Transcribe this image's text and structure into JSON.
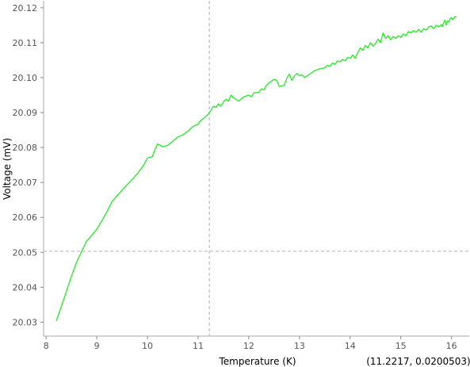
{
  "chart_data": {
    "type": "line",
    "title": "",
    "xlabel": "Temperature (K)",
    "ylabel": "Voltage (mV)",
    "xlim": [
      7.95,
      16.35
    ],
    "ylim": [
      20.026,
      20.122
    ],
    "x_ticks": [
      8,
      9,
      10,
      11,
      12,
      13,
      14,
      15,
      16
    ],
    "x_tick_labels": [
      "8",
      "9",
      "10",
      "11",
      "12",
      "13",
      "14",
      "15",
      "16"
    ],
    "y_ticks": [
      20.03,
      20.04,
      20.05,
      20.06,
      20.07,
      20.08,
      20.09,
      20.1,
      20.11,
      20.12
    ],
    "y_tick_labels": [
      "20.03",
      "20.04",
      "20.05",
      "20.06",
      "20.07",
      "20.08",
      "20.09",
      "20.10",
      "20.11",
      "20.12"
    ],
    "grid": false,
    "legend": "none",
    "series_color": "#22ee22",
    "crosshair": {
      "x": 11.2217,
      "y": 20.0503,
      "color": "#bbbbbb"
    },
    "cursor_readout": "(11.2217, 0.0200503)",
    "series": [
      {
        "points": [
          [
            8.2,
            20.0303
          ],
          [
            8.3,
            20.0345
          ],
          [
            8.4,
            20.0388
          ],
          [
            8.5,
            20.0432
          ],
          [
            8.6,
            20.0471
          ],
          [
            8.7,
            20.0502
          ],
          [
            8.8,
            20.0532
          ],
          [
            8.9,
            20.0548
          ],
          [
            9.0,
            20.0566
          ],
          [
            9.1,
            20.059
          ],
          [
            9.2,
            20.0616
          ],
          [
            9.3,
            20.0645
          ],
          [
            9.4,
            20.0662
          ],
          [
            9.5,
            20.0678
          ],
          [
            9.6,
            20.0694
          ],
          [
            9.7,
            20.0709
          ],
          [
            9.8,
            20.0725
          ],
          [
            9.9,
            20.0744
          ],
          [
            9.95,
            20.0756
          ],
          [
            10.0,
            20.077
          ],
          [
            10.05,
            20.0772
          ],
          [
            10.1,
            20.0774
          ],
          [
            10.15,
            20.0795
          ],
          [
            10.2,
            20.081
          ],
          [
            10.25,
            20.0806
          ],
          [
            10.3,
            20.0802
          ],
          [
            10.4,
            20.0806
          ],
          [
            10.5,
            20.0818
          ],
          [
            10.6,
            20.083
          ],
          [
            10.7,
            20.0836
          ],
          [
            10.8,
            20.0847
          ],
          [
            10.9,
            20.086
          ],
          [
            11.0,
            20.0867
          ],
          [
            11.05,
            20.0877
          ],
          [
            11.1,
            20.0882
          ],
          [
            11.2,
            20.0896
          ],
          [
            11.25,
            20.0906
          ],
          [
            11.3,
            20.0918
          ],
          [
            11.35,
            20.0915
          ],
          [
            11.4,
            20.0925
          ],
          [
            11.45,
            20.0918
          ],
          [
            11.5,
            20.093
          ],
          [
            11.55,
            20.0938
          ],
          [
            11.6,
            20.0933
          ],
          [
            11.65,
            20.095
          ],
          [
            11.7,
            20.0942
          ],
          [
            11.8,
            20.0933
          ],
          [
            11.9,
            20.0945
          ],
          [
            12.0,
            20.095
          ],
          [
            12.05,
            20.0945
          ],
          [
            12.1,
            20.0956
          ],
          [
            12.2,
            20.0958
          ],
          [
            12.25,
            20.0968
          ],
          [
            12.3,
            20.0965
          ],
          [
            12.35,
            20.0978
          ],
          [
            12.4,
            20.0985
          ],
          [
            12.45,
            20.099
          ],
          [
            12.5,
            20.0995
          ],
          [
            12.55,
            20.0992
          ],
          [
            12.6,
            20.0975
          ],
          [
            12.7,
            20.0978
          ],
          [
            12.75,
            20.0998
          ],
          [
            12.8,
            20.101
          ],
          [
            12.85,
            20.0992
          ],
          [
            12.9,
            20.1005
          ],
          [
            12.95,
            20.1012
          ],
          [
            13.0,
            20.1005
          ],
          [
            13.05,
            20.1008
          ],
          [
            13.1,
            20.1
          ],
          [
            13.2,
            20.101
          ],
          [
            13.3,
            20.102
          ],
          [
            13.4,
            20.1025
          ],
          [
            13.5,
            20.1028
          ],
          [
            13.55,
            20.1035
          ],
          [
            13.6,
            20.1032
          ],
          [
            13.65,
            20.1042
          ],
          [
            13.7,
            20.1038
          ],
          [
            13.75,
            20.1048
          ],
          [
            13.8,
            20.1045
          ],
          [
            13.85,
            20.1052
          ],
          [
            13.9,
            20.1048
          ],
          [
            13.95,
            20.1058
          ],
          [
            14.0,
            20.1055
          ],
          [
            14.05,
            20.1065
          ],
          [
            14.1,
            20.1055
          ],
          [
            14.15,
            20.1072
          ],
          [
            14.2,
            20.1085
          ],
          [
            14.25,
            20.1078
          ],
          [
            14.3,
            20.1092
          ],
          [
            14.35,
            20.1085
          ],
          [
            14.4,
            20.11
          ],
          [
            14.45,
            20.109
          ],
          [
            14.5,
            20.1098
          ],
          [
            14.55,
            20.111
          ],
          [
            14.6,
            20.11
          ],
          [
            14.65,
            20.1128
          ],
          [
            14.7,
            20.1112
          ],
          [
            14.75,
            20.112
          ],
          [
            14.8,
            20.1108
          ],
          [
            14.85,
            20.1118
          ],
          [
            14.9,
            20.1112
          ],
          [
            14.95,
            20.112
          ],
          [
            15.0,
            20.1115
          ],
          [
            15.05,
            20.1125
          ],
          [
            15.1,
            20.112
          ],
          [
            15.15,
            20.1132
          ],
          [
            15.2,
            20.1128
          ],
          [
            15.25,
            20.1135
          ],
          [
            15.3,
            20.113
          ],
          [
            15.35,
            20.1138
          ],
          [
            15.4,
            20.113
          ],
          [
            15.45,
            20.114
          ],
          [
            15.5,
            20.1136
          ],
          [
            15.55,
            20.1145
          ],
          [
            15.6,
            20.1148
          ],
          [
            15.65,
            20.114
          ],
          [
            15.7,
            20.115
          ],
          [
            15.75,
            20.1145
          ],
          [
            15.8,
            20.1152
          ],
          [
            15.82,
            20.1146
          ],
          [
            15.85,
            20.1158
          ],
          [
            15.87,
            20.1165
          ],
          [
            15.9,
            20.115
          ],
          [
            15.92,
            20.1162
          ],
          [
            15.95,
            20.116
          ],
          [
            15.97,
            20.1168
          ],
          [
            16.0,
            20.1172
          ],
          [
            16.02,
            20.1166
          ],
          [
            16.05,
            20.117
          ],
          [
            16.07,
            20.1175
          ],
          [
            16.1,
            20.1172
          ]
        ]
      }
    ]
  }
}
